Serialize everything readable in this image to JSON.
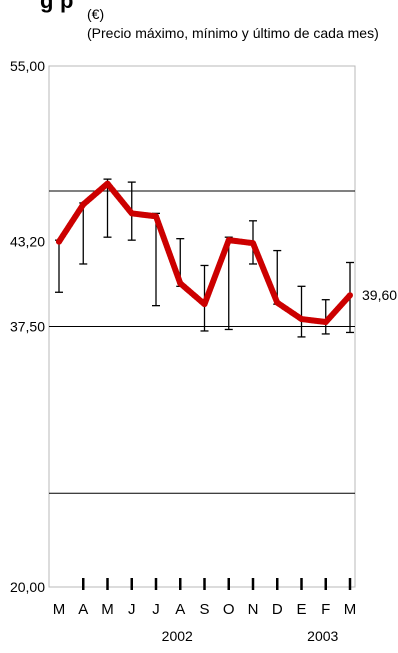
{
  "chart_data": {
    "type": "line",
    "title": "g                                                      p",
    "unit_label": "(€)",
    "subtitle": "(Precio máximo, mínimo y último de cada mes)",
    "y_tick_labels": [
      "55,00",
      "43,20",
      "37,50",
      "20,00"
    ],
    "y_ticks": [
      55.0,
      43.2,
      37.5,
      20.0
    ],
    "ylim": [
      20,
      55
    ],
    "gridlines": [
      46.6,
      37.5,
      26.3
    ],
    "categories": [
      "M",
      "A",
      "M",
      "J",
      "J",
      "A",
      "S",
      "O",
      "N",
      "D",
      "E",
      "F",
      "M"
    ],
    "year_labels": [
      {
        "label": "2002",
        "at_index": 5
      },
      {
        "label": "2003",
        "at_index": 11
      }
    ],
    "series": [
      {
        "color": "#cc0000",
        "close": [
          43.2,
          45.7,
          47.1,
          45.1,
          44.9,
          40.4,
          39.0,
          43.3,
          43.1,
          39.1,
          38.0,
          37.8,
          39.6
        ],
        "high": [
          43.3,
          45.8,
          47.4,
          47.2,
          45.1,
          43.4,
          41.6,
          43.5,
          44.6,
          42.6,
          40.2,
          39.3,
          41.8
        ],
        "low": [
          39.8,
          41.7,
          43.5,
          43.3,
          38.9,
          40.2,
          37.2,
          37.3,
          41.7,
          39.0,
          36.8,
          37.0,
          37.1
        ]
      }
    ],
    "last_value_label": "39,60"
  }
}
